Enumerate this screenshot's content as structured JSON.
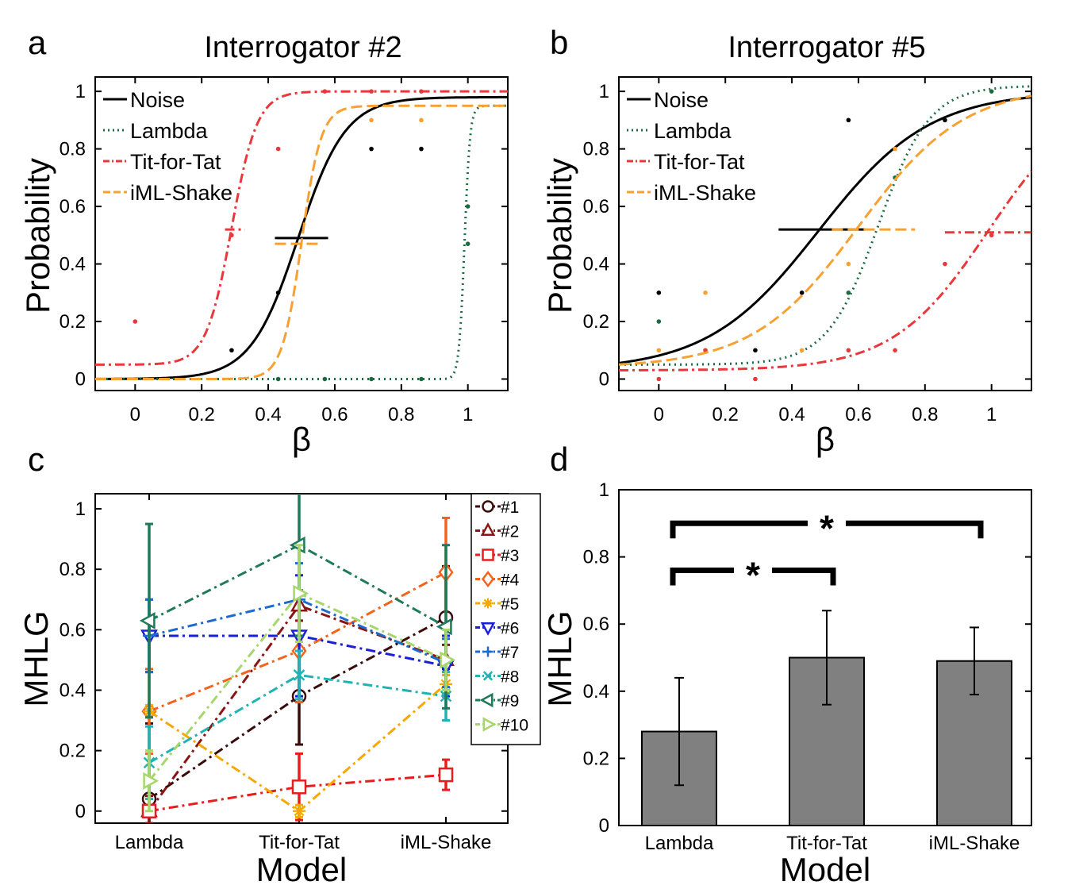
{
  "chart_data": [
    {
      "panel": "a",
      "type": "line",
      "title": "Interrogator #2",
      "xlabel": "β",
      "ylabel": "Probability",
      "xlim": [
        -0.12,
        1.12
      ],
      "ylim": [
        -0.04,
        1.05
      ],
      "xticks": [
        0,
        0.2,
        0.4,
        0.6,
        0.8,
        1
      ],
      "xtick_labels": [
        "0",
        "0.2",
        "0.4",
        "0.6",
        "0.8",
        "1"
      ],
      "yticks": [
        0,
        0.2,
        0.4,
        0.6,
        0.8,
        1
      ],
      "ytick_labels": [
        "0",
        "0.2",
        "0.4",
        "0.6",
        "0.8",
        "1"
      ],
      "legend_position": "top-left",
      "series": [
        {
          "name": "Noise",
          "color": "#000000",
          "dash": "",
          "curve": {
            "low": 0.0,
            "high": 0.98,
            "mid": 0.49,
            "slope": 14
          },
          "threshold": {
            "x1": 0.42,
            "x2": 0.58,
            "y": 0.49
          },
          "points": [
            [
              0.29,
              0.1
            ],
            [
              0.43,
              0.3
            ],
            [
              0.71,
              0.8
            ],
            [
              0.86,
              0.8
            ]
          ]
        },
        {
          "name": "Lambda",
          "color": "#1a6b40",
          "dash": "2,5",
          "curve": {
            "low": 0.0,
            "high": 0.95,
            "mid": 0.99,
            "slope": 120
          },
          "threshold": null,
          "points": [
            [
              0.43,
              0.0
            ],
            [
              0.57,
              0.0
            ],
            [
              0.71,
              0.0
            ],
            [
              0.86,
              0.0
            ],
            [
              1.0,
              0.6
            ],
            [
              1.0,
              0.47
            ]
          ]
        },
        {
          "name": "Tit-for-Tat",
          "color": "#e8383b",
          "dash": "12,5,3,5",
          "curve": {
            "low": 0.05,
            "high": 1.0,
            "mid": 0.29,
            "slope": 26
          },
          "threshold": {
            "x1": 0.27,
            "x2": 0.33,
            "y": 0.52
          },
          "points": [
            [
              0.0,
              0.2
            ],
            [
              0.29,
              0.5
            ],
            [
              0.43,
              0.8
            ],
            [
              0.57,
              1.0
            ],
            [
              0.71,
              1.0
            ],
            [
              0.86,
              1.0
            ]
          ]
        },
        {
          "name": "iML-Shake",
          "color": "#f6a132",
          "dash": "14,6",
          "curve": {
            "low": 0.0,
            "high": 0.95,
            "mid": 0.5,
            "slope": 34
          },
          "threshold": {
            "x1": 0.42,
            "x2": 0.56,
            "y": 0.47
          },
          "points": [
            [
              0.71,
              0.9
            ],
            [
              0.86,
              0.9
            ]
          ]
        }
      ]
    },
    {
      "panel": "b",
      "type": "line",
      "title": "Interrogator #5",
      "xlabel": "β",
      "ylabel": "Probability",
      "xlim": [
        -0.12,
        1.12
      ],
      "ylim": [
        -0.04,
        1.05
      ],
      "xticks": [
        0,
        0.2,
        0.4,
        0.6,
        0.8,
        1
      ],
      "xtick_labels": [
        "0",
        "0.2",
        "0.4",
        "0.6",
        "0.8",
        "1"
      ],
      "yticks": [
        0,
        0.2,
        0.4,
        0.6,
        0.8,
        1
      ],
      "ytick_labels": [
        "0",
        "0.2",
        "0.4",
        "0.6",
        "0.8",
        "1"
      ],
      "legend_position": "top-left",
      "series": [
        {
          "name": "Noise",
          "color": "#000000",
          "dash": "",
          "curve": {
            "low": 0.03,
            "high": 1.0,
            "mid": 0.48,
            "slope": 6
          },
          "threshold": {
            "x1": 0.36,
            "x2": 0.62,
            "y": 0.52
          },
          "points": [
            [
              0.0,
              0.3
            ],
            [
              0.29,
              0.1
            ],
            [
              0.43,
              0.3
            ],
            [
              0.57,
              0.9
            ],
            [
              0.86,
              0.9
            ]
          ]
        },
        {
          "name": "Lambda",
          "color": "#1a6b40",
          "dash": "2,5",
          "curve": {
            "low": 0.05,
            "high": 1.02,
            "mid": 0.66,
            "slope": 13
          },
          "threshold": null,
          "points": [
            [
              0.0,
              0.2
            ],
            [
              0.57,
              0.3
            ],
            [
              0.71,
              0.7
            ],
            [
              1.0,
              1.0
            ]
          ]
        },
        {
          "name": "Tit-for-Tat",
          "color": "#e8383b",
          "dash": "12,5,3,5",
          "curve": {
            "low": 0.03,
            "high": 1.0,
            "mid": 0.99,
            "slope": 7
          },
          "threshold": {
            "x1": 0.86,
            "x2": 1.12,
            "y": 0.51
          },
          "points": [
            [
              0.0,
              0.0
            ],
            [
              0.14,
              0.1
            ],
            [
              0.29,
              0.0
            ],
            [
              0.57,
              0.1
            ],
            [
              0.71,
              0.1
            ],
            [
              0.86,
              0.4
            ],
            [
              1.0,
              0.5
            ]
          ]
        },
        {
          "name": "iML-Shake",
          "color": "#f6a132",
          "dash": "14,6",
          "curve": {
            "low": 0.04,
            "high": 1.02,
            "mid": 0.6,
            "slope": 6.3
          },
          "threshold": {
            "x1": 0.52,
            "x2": 0.77,
            "y": 0.52
          },
          "points": [
            [
              0.0,
              0.1
            ],
            [
              0.14,
              0.3
            ],
            [
              0.43,
              0.1
            ],
            [
              0.57,
              0.4
            ],
            [
              0.71,
              0.8
            ]
          ]
        }
      ]
    },
    {
      "panel": "c",
      "type": "line",
      "xlabel": "Model",
      "ylabel": "MHLG",
      "categories": [
        "Lambda",
        "Tit-for-Tat",
        "iML-Shake"
      ],
      "ylim": [
        -0.04,
        1.05
      ],
      "yticks": [
        0,
        0.2,
        0.4,
        0.6,
        0.8,
        1
      ],
      "ytick_labels": [
        "0",
        "0.2",
        "0.4",
        "0.6",
        "0.8",
        "1"
      ],
      "legend_position": "top-right",
      "series": [
        {
          "name": "#1",
          "color": "#3a0c0c",
          "marker": "circle",
          "values": [
            0.04,
            0.38,
            0.64
          ],
          "err": [
            0.25,
            0.16,
            0.17
          ]
        },
        {
          "name": "#2",
          "color": "#8b1515",
          "marker": "triangle-up",
          "values": [
            0.0,
            0.68,
            0.5
          ],
          "err": [
            0.05,
            0.05,
            0.05
          ]
        },
        {
          "name": "#3",
          "color": "#e81e1e",
          "marker": "square",
          "values": [
            0.0,
            0.08,
            0.12
          ],
          "err": [
            0.02,
            0.11,
            0.05
          ]
        },
        {
          "name": "#4",
          "color": "#f3641b",
          "marker": "diamond",
          "values": [
            0.33,
            0.53,
            0.79
          ],
          "err": [
            0.14,
            0.17,
            0.18
          ]
        },
        {
          "name": "#5",
          "color": "#f6a800",
          "marker": "asterisk",
          "values": [
            0.33,
            0.0,
            0.42
          ],
          "err": [
            0.02,
            0.02,
            0.03
          ]
        },
        {
          "name": "#6",
          "color": "#1a1fd6",
          "marker": "triangle-down",
          "values": [
            0.58,
            0.58,
            0.48
          ],
          "err": [
            0.12,
            0.2,
            0.1
          ]
        },
        {
          "name": "#7",
          "color": "#1c6ccf",
          "marker": "plus",
          "values": [
            0.58,
            0.7,
            0.49
          ],
          "err": [
            0.12,
            0.12,
            0.08
          ]
        },
        {
          "name": "#8",
          "color": "#1fb3b3",
          "marker": "cross",
          "values": [
            0.16,
            0.45,
            0.38
          ],
          "err": [
            0.12,
            0.08,
            0.08
          ]
        },
        {
          "name": "#9",
          "color": "#1d7a5a",
          "marker": "triangle-left",
          "values": [
            0.63,
            0.88,
            0.61
          ],
          "err": [
            0.32,
            0.3,
            0.27
          ]
        },
        {
          "name": "#10",
          "color": "#a6d66c",
          "marker": "triangle-right",
          "values": [
            0.1,
            0.72,
            0.5
          ],
          "err": [
            0.1,
            0.16,
            0.1
          ]
        }
      ]
    },
    {
      "panel": "d",
      "type": "bar",
      "xlabel": "Model",
      "ylabel": "MHLG",
      "categories": [
        "Lambda",
        "Tit-for-Tat",
        "iML-Shake"
      ],
      "values": [
        0.28,
        0.5,
        0.49
      ],
      "err": [
        0.16,
        0.14,
        0.1
      ],
      "ylim": [
        0,
        1
      ],
      "yticks": [
        0,
        0.2,
        0.4,
        0.6,
        0.8,
        1
      ],
      "ytick_labels": [
        "0",
        "0.2",
        "0.4",
        "0.6",
        "0.8",
        "1"
      ],
      "bar_color": "#808080",
      "significance": [
        {
          "from": 0,
          "to": 2,
          "level": 0.9,
          "label": "*"
        },
        {
          "from": 0,
          "to": 1,
          "level": 0.76,
          "label": "*"
        }
      ]
    }
  ]
}
